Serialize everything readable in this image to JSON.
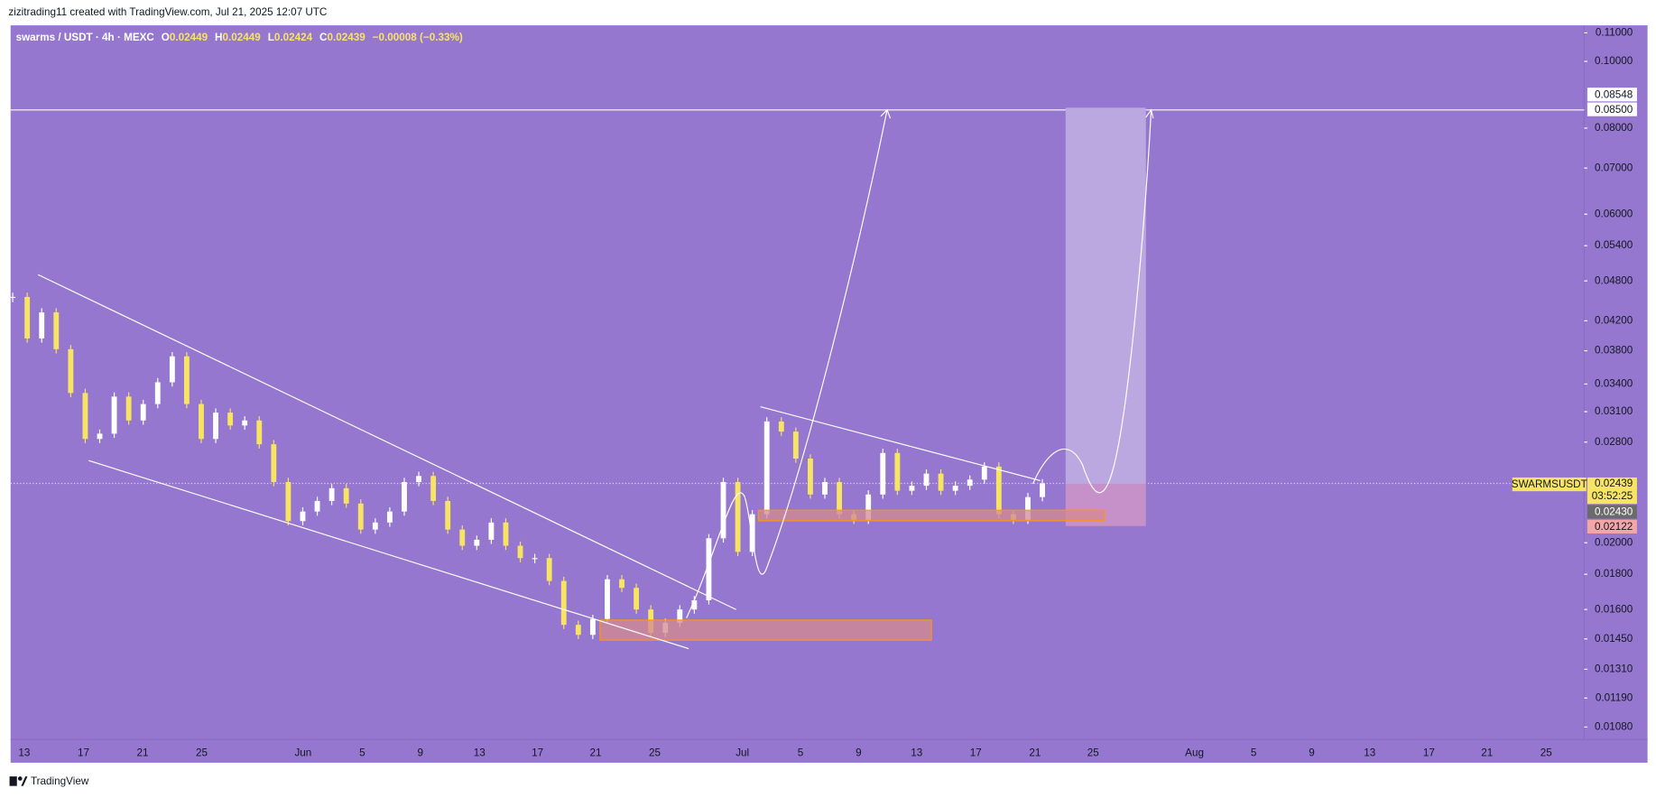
{
  "header": {
    "text": "zizitrading11 created with TradingView.com, Jul 21, 2025 12:07 UTC"
  },
  "legend": {
    "symbol": "swarms / USDT · 4h · MEXC",
    "open": {
      "label": "O",
      "value": "0.02449"
    },
    "high": {
      "label": "H",
      "value": "0.02449"
    },
    "low": {
      "label": "L",
      "value": "0.02424"
    },
    "close": {
      "label": "C",
      "value": "0.02439"
    },
    "change": "−0.00008 (−0.33%)"
  },
  "price_labels": {
    "target": "0.08548",
    "level": "0.08500",
    "symbol": "SWARMSUSDT",
    "last": "0.02439",
    "countdown": "03:52:25",
    "entry": "0.02430",
    "stop": "0.02122"
  },
  "footer": {
    "brand": "TradingView"
  },
  "chart_data": {
    "type": "candlestick",
    "log": true,
    "up_color": "#ffffff",
    "down_color": "#f7e463",
    "ylim": [
      0.01036,
      0.1128
    ],
    "yticks": [
      {
        "value": 0.11,
        "label": "0.11000"
      },
      {
        "value": 0.1,
        "label": "0.10000"
      },
      {
        "value": 0.08,
        "label": "0.08000"
      },
      {
        "value": 0.07,
        "label": "0.07000"
      },
      {
        "value": 0.06,
        "label": "0.06000"
      },
      {
        "value": 0.054,
        "label": "0.05400"
      },
      {
        "value": 0.048,
        "label": "0.04800"
      },
      {
        "value": 0.042,
        "label": "0.04200"
      },
      {
        "value": 0.038,
        "label": "0.03800"
      },
      {
        "value": 0.034,
        "label": "0.03400"
      },
      {
        "value": 0.031,
        "label": "0.03100"
      },
      {
        "value": 0.028,
        "label": "0.02800"
      },
      {
        "value": 0.02,
        "label": "0.02000"
      },
      {
        "value": 0.018,
        "label": "0.01800"
      },
      {
        "value": 0.016,
        "label": "0.01600"
      },
      {
        "value": 0.0145,
        "label": "0.01450"
      },
      {
        "value": 0.0131,
        "label": "0.01310"
      },
      {
        "value": 0.0119,
        "label": "0.01190"
      },
      {
        "value": 0.0108,
        "label": "0.01080"
      }
    ],
    "xlabels": [
      "13",
      "17",
      "21",
      "25",
      "Jun",
      "5",
      "9",
      "13",
      "17",
      "21",
      "25",
      "Jul",
      "5",
      "9",
      "13",
      "17",
      "21",
      "25",
      "Aug",
      "5",
      "9",
      "13",
      "17",
      "21",
      "25"
    ],
    "hline": 0.085,
    "values": [
      0.0455,
      0.0396,
      0.0432,
      0.0382,
      0.033,
      0.0283,
      0.0288,
      0.0326,
      0.0301,
      0.0318,
      0.0342,
      0.0373,
      0.0318,
      0.0283,
      0.0309,
      0.0296,
      0.0301,
      0.0278,
      0.0245,
      0.0215,
      0.0222,
      0.023,
      0.024,
      0.0228,
      0.0209,
      0.0214,
      0.0222,
      0.0245,
      0.025,
      0.023,
      0.0209,
      0.0198,
      0.0202,
      0.0214,
      0.0198,
      0.019,
      0.019,
      0.0176,
      0.0152,
      0.0147,
      0.0155,
      0.0177,
      0.0172,
      0.016,
      0.0148,
      0.0153,
      0.016,
      0.0165,
      0.0203,
      0.0245,
      0.0194,
      0.022,
      0.03,
      0.029,
      0.0265,
      0.0235,
      0.0245,
      0.022,
      0.0216,
      0.0235,
      0.027,
      0.0238,
      0.0242,
      0.0252,
      0.0238,
      0.0242,
      0.0247,
      0.0258,
      0.022,
      0.0216,
      0.0233,
      0.02439
    ]
  }
}
